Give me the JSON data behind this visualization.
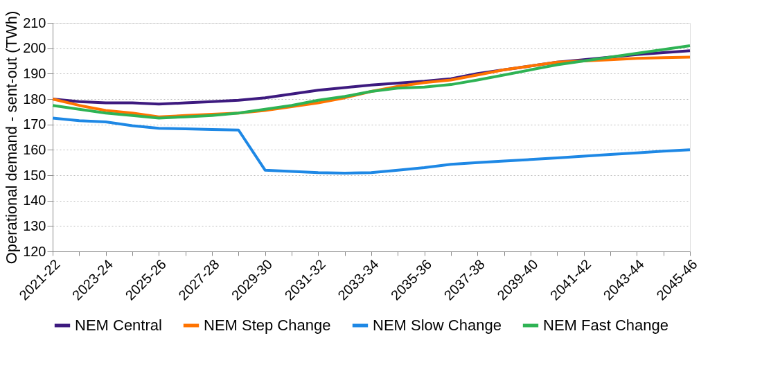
{
  "chart_data": {
    "type": "line",
    "ylabel": "Operational demand - sent-out (TWh)",
    "categories": [
      "2021-22",
      null,
      "2023-24",
      null,
      "2025-26",
      null,
      "2027-28",
      null,
      "2029-30",
      null,
      "2031-32",
      null,
      "2033-34",
      null,
      "2035-36",
      null,
      "2037-38",
      null,
      "2039-40",
      null,
      "2041-42",
      null,
      "2043-44",
      null,
      "2045-46"
    ],
    "ylim": [
      120,
      210
    ],
    "yticks": [
      120,
      130,
      140,
      150,
      160,
      170,
      180,
      190,
      200,
      210
    ],
    "grid": "y",
    "legend": "bottom",
    "marker": "none",
    "line_style": "solid",
    "series": [
      {
        "name": "NEM Central",
        "color": "#3d1a7f",
        "values": [
          180,
          179,
          178.5,
          178.5,
          178,
          178.5,
          179,
          179.5,
          180.5,
          182,
          183.5,
          184.5,
          185.5,
          186.3,
          187,
          188,
          190,
          191.5,
          193,
          194.5,
          195.5,
          196.5,
          197.5,
          198.3,
          199
        ]
      },
      {
        "name": "NEM Step Change",
        "color": "#ff7300",
        "values": [
          180,
          177.5,
          175.5,
          174.5,
          173,
          173.5,
          174,
          174.5,
          175.5,
          177,
          178.5,
          180.5,
          183,
          185,
          186.5,
          187.5,
          189.5,
          191.5,
          193,
          194.5,
          195,
          195.5,
          196,
          196.3,
          196.5
        ]
      },
      {
        "name": "NEM Slow Change",
        "color": "#1e88e5",
        "values": [
          172.5,
          171.5,
          171,
          169.5,
          168.5,
          168.3,
          168,
          167.8,
          152,
          151.5,
          151,
          150.8,
          151,
          152,
          153,
          154.3,
          155,
          155.6,
          156.2,
          156.8,
          157.5,
          158.2,
          158.8,
          159.5,
          160
        ]
      },
      {
        "name": "NEM Fast Change",
        "color": "#2eb354",
        "values": [
          177.5,
          176,
          174.5,
          173.5,
          172.5,
          173,
          173.5,
          174.5,
          176,
          177.5,
          179.5,
          181,
          183,
          184.3,
          184.7,
          185.7,
          187.5,
          189.5,
          191.5,
          193.5,
          195,
          196.5,
          198,
          199.5,
          201
        ]
      }
    ]
  }
}
